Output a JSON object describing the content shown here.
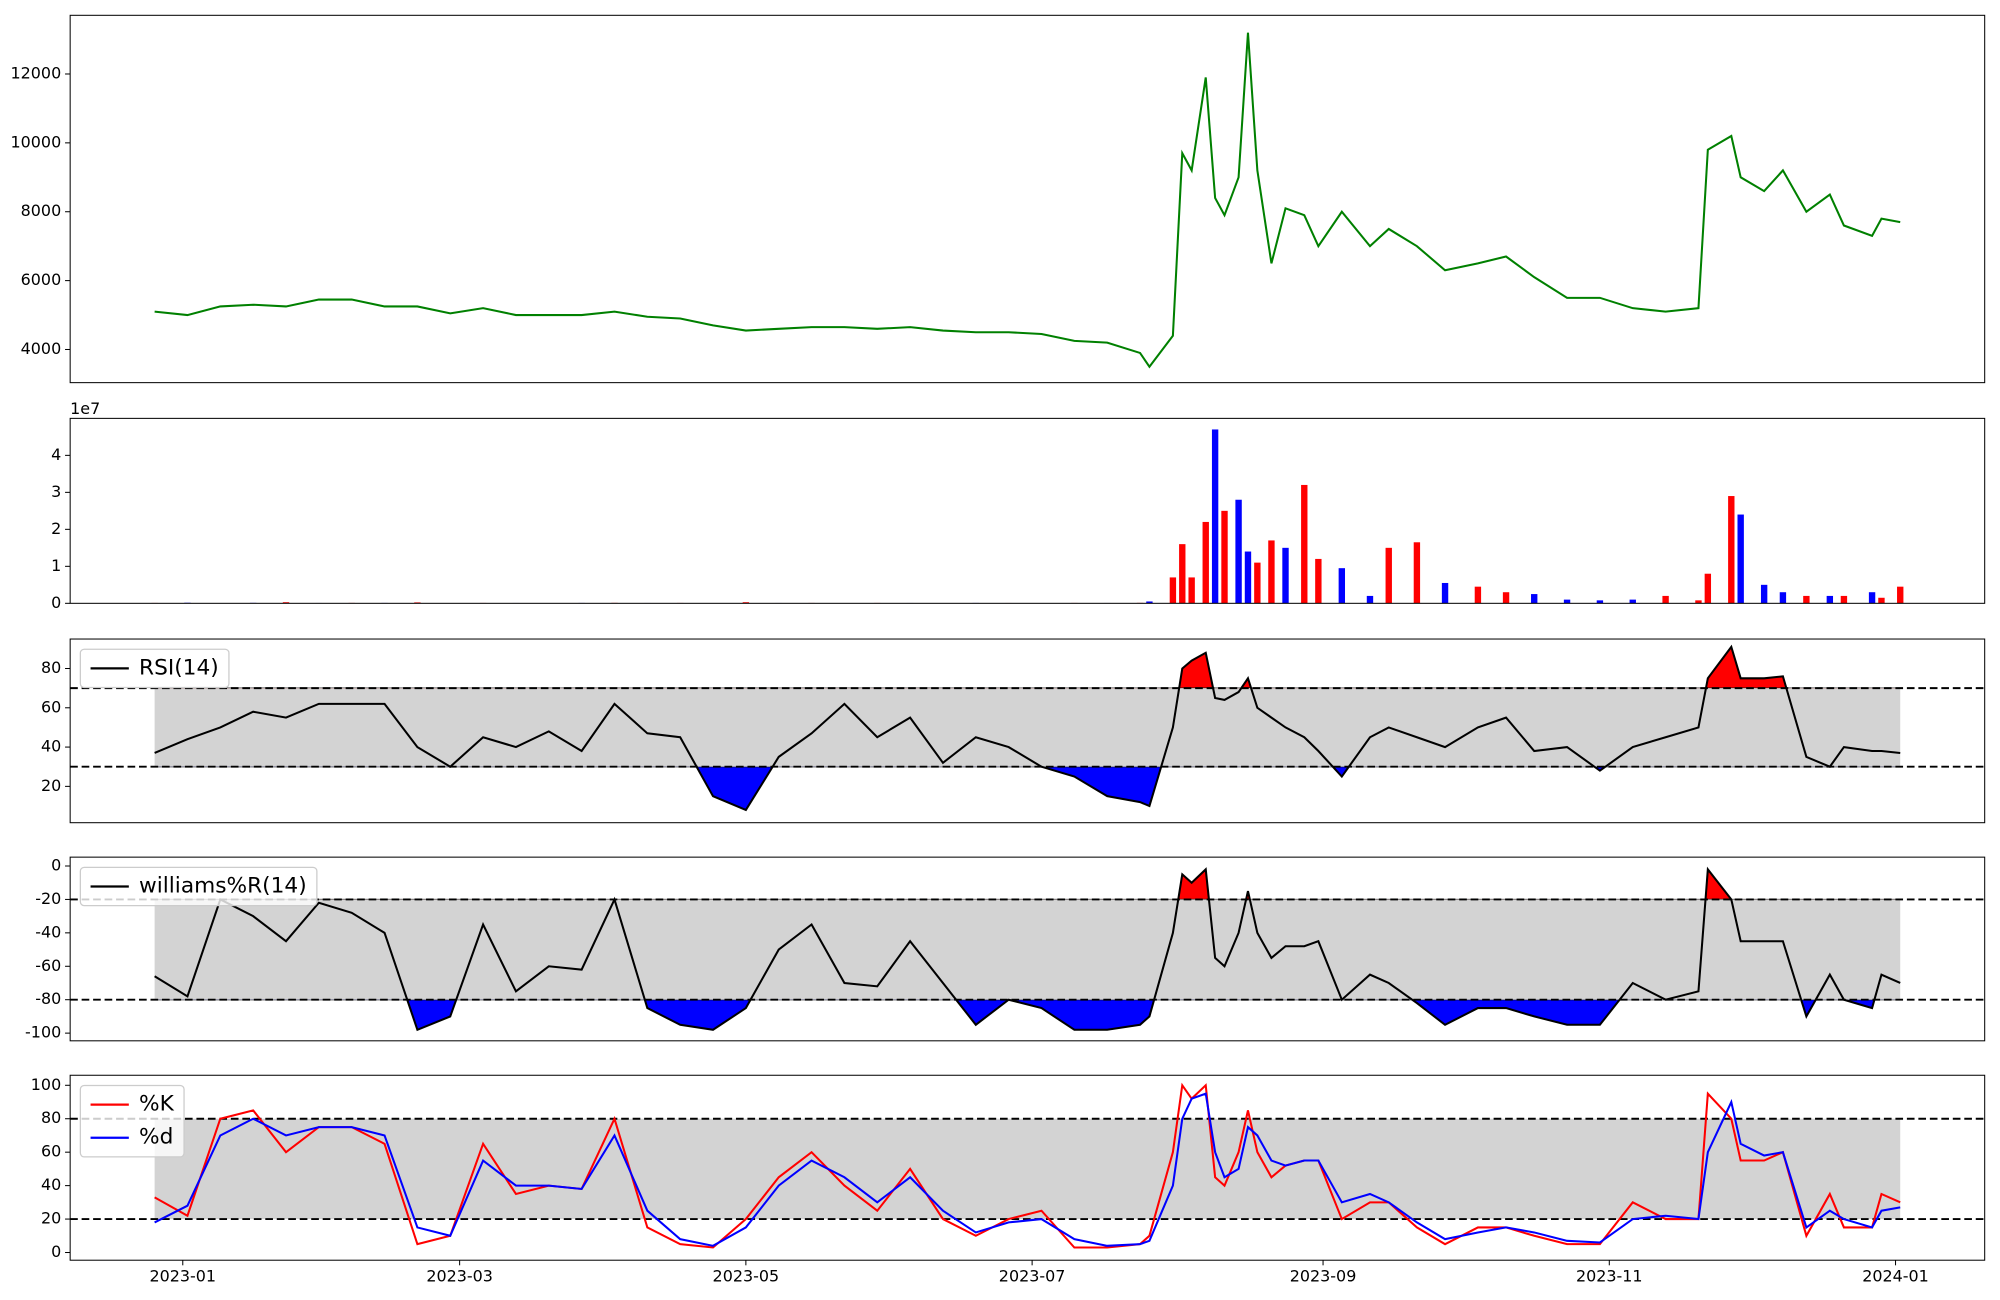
{
  "chart_data": [
    {
      "type": "line",
      "x": [
        "2022-12-26",
        "2023-01-02",
        "2023-01-09",
        "2023-01-16",
        "2023-01-23",
        "2023-01-30",
        "2023-02-06",
        "2023-02-13",
        "2023-02-20",
        "2023-02-27",
        "2023-03-06",
        "2023-03-13",
        "2023-03-20",
        "2023-03-27",
        "2023-04-03",
        "2023-04-10",
        "2023-04-17",
        "2023-04-24",
        "2023-05-01",
        "2023-05-08",
        "2023-05-15",
        "2023-05-22",
        "2023-05-29",
        "2023-06-05",
        "2023-06-12",
        "2023-06-19",
        "2023-06-26",
        "2023-07-03",
        "2023-07-10",
        "2023-07-17",
        "2023-07-24",
        "2023-07-26",
        "2023-07-31",
        "2023-08-02",
        "2023-08-04",
        "2023-08-07",
        "2023-08-09",
        "2023-08-11",
        "2023-08-14",
        "2023-08-16",
        "2023-08-18",
        "2023-08-21",
        "2023-08-24",
        "2023-08-28",
        "2023-08-31",
        "2023-09-05",
        "2023-09-11",
        "2023-09-15",
        "2023-09-21",
        "2023-09-27",
        "2023-10-04",
        "2023-10-10",
        "2023-10-16",
        "2023-10-23",
        "2023-10-30",
        "2023-11-06",
        "2023-11-13",
        "2023-11-20",
        "2023-11-22",
        "2023-11-27",
        "2023-11-29",
        "2023-12-04",
        "2023-12-08",
        "2023-12-13",
        "2023-12-18",
        "2023-12-21",
        "2023-12-27",
        "2023-12-29",
        "2024-01-02"
      ],
      "series": [
        {
          "color": "green",
          "values": [
            5100,
            5000,
            5250,
            5300,
            5250,
            5450,
            5450,
            5250,
            5250,
            5050,
            5200,
            5000,
            5000,
            5000,
            5100,
            4950,
            4900,
            4700,
            4550,
            4600,
            4650,
            4650,
            4600,
            4650,
            4550,
            4500,
            4500,
            4450,
            4250,
            4200,
            3900,
            3500,
            4400,
            9700,
            9200,
            11900,
            8400,
            7900,
            9000,
            13200,
            9200,
            6500,
            8100,
            7900,
            7000,
            8000,
            7000,
            7500,
            7000,
            6300,
            6500,
            6700,
            6100,
            5500,
            5500,
            5200,
            5100,
            5200,
            9800,
            10200,
            9000,
            8600,
            9200,
            8000,
            8500,
            7600,
            7300,
            7800,
            7700
          ]
        }
      ],
      "xlim": [
        "2022-12-08",
        "2024-01-20"
      ],
      "ylim": [
        3037,
        13704
      ],
      "yticks": [
        4000,
        6000,
        8000,
        10000,
        12000
      ]
    },
    {
      "type": "bar",
      "x": [
        "2022-12-26",
        "2023-01-02",
        "2023-01-09",
        "2023-01-16",
        "2023-01-23",
        "2023-01-30",
        "2023-02-06",
        "2023-02-13",
        "2023-02-20",
        "2023-02-27",
        "2023-03-06",
        "2023-03-13",
        "2023-03-20",
        "2023-03-27",
        "2023-04-03",
        "2023-04-10",
        "2023-04-17",
        "2023-04-24",
        "2023-05-01",
        "2023-05-08",
        "2023-05-15",
        "2023-05-22",
        "2023-05-29",
        "2023-06-05",
        "2023-06-12",
        "2023-06-19",
        "2023-06-26",
        "2023-07-03",
        "2023-07-10",
        "2023-07-17",
        "2023-07-24",
        "2023-07-26",
        "2023-07-31",
        "2023-08-02",
        "2023-08-04",
        "2023-08-07",
        "2023-08-09",
        "2023-08-11",
        "2023-08-14",
        "2023-08-16",
        "2023-08-18",
        "2023-08-21",
        "2023-08-24",
        "2023-08-28",
        "2023-08-31",
        "2023-09-05",
        "2023-09-11",
        "2023-09-15",
        "2023-09-21",
        "2023-09-27",
        "2023-10-04",
        "2023-10-10",
        "2023-10-16",
        "2023-10-23",
        "2023-10-30",
        "2023-11-06",
        "2023-11-13",
        "2023-11-20",
        "2023-11-22",
        "2023-11-27",
        "2023-11-29",
        "2023-12-04",
        "2023-12-08",
        "2023-12-13",
        "2023-12-18",
        "2023-12-21",
        "2023-12-27",
        "2023-12-29",
        "2024-01-02"
      ],
      "values": [
        100000,
        150000,
        80000,
        120000,
        300000,
        90000,
        110000,
        100000,
        250000,
        70000,
        100000,
        90000,
        80000,
        100000,
        120000,
        90000,
        100000,
        80000,
        300000,
        90000,
        100000,
        80000,
        100000,
        90000,
        80000,
        100000,
        90000,
        80000,
        100000,
        90000,
        120000,
        500000,
        7000000,
        16000000,
        7000000,
        22000000,
        47000000,
        25000000,
        28000000,
        14000000,
        11000000,
        17000000,
        15000000,
        32000000,
        12000000,
        9500000,
        2000000,
        15000000,
        16500000,
        5500000,
        4500000,
        3000000,
        2500000,
        1000000,
        800000,
        1000000,
        2000000,
        800000,
        8000000,
        29000000,
        24000000,
        5000000,
        3000000,
        2000000,
        2000000,
        2000000,
        3000000,
        1500000,
        4500000
      ],
      "colors": [
        "red",
        "blue",
        "red",
        "blue",
        "red",
        "blue",
        "red",
        "blue",
        "red",
        "blue",
        "red",
        "blue",
        "red",
        "blue",
        "red",
        "blue",
        "red",
        "blue",
        "red",
        "blue",
        "red",
        "blue",
        "red",
        "blue",
        "red",
        "blue",
        "red",
        "blue",
        "red",
        "blue",
        "red",
        "blue",
        "red",
        "red",
        "red",
        "red",
        "blue",
        "red",
        "blue",
        "blue",
        "red",
        "red",
        "blue",
        "red",
        "red",
        "blue",
        "blue",
        "red",
        "red",
        "blue",
        "red",
        "red",
        "blue",
        "blue",
        "blue",
        "blue",
        "red",
        "red",
        "red",
        "red",
        "blue",
        "blue",
        "blue",
        "red",
        "blue",
        "red",
        "blue",
        "red",
        "red"
      ],
      "xlim": [
        "2022-12-08",
        "2024-01-20"
      ],
      "ylim": [
        0,
        50000000
      ],
      "yticks": [
        0,
        {
          "value": 10000000,
          "label": "1"
        },
        {
          "value": 20000000,
          "label": "2"
        },
        {
          "value": 30000000,
          "label": "3"
        },
        {
          "value": 40000000,
          "label": "4"
        }
      ],
      "y_offset_label": "1e7"
    },
    {
      "type": "line",
      "x": [
        "2022-12-26",
        "2023-01-02",
        "2023-01-09",
        "2023-01-16",
        "2023-01-23",
        "2023-01-30",
        "2023-02-06",
        "2023-02-13",
        "2023-02-20",
        "2023-02-27",
        "2023-03-06",
        "2023-03-13",
        "2023-03-20",
        "2023-03-27",
        "2023-04-03",
        "2023-04-10",
        "2023-04-17",
        "2023-04-24",
        "2023-05-01",
        "2023-05-08",
        "2023-05-15",
        "2023-05-22",
        "2023-05-29",
        "2023-06-05",
        "2023-06-12",
        "2023-06-19",
        "2023-06-26",
        "2023-07-03",
        "2023-07-10",
        "2023-07-17",
        "2023-07-24",
        "2023-07-26",
        "2023-07-31",
        "2023-08-02",
        "2023-08-04",
        "2023-08-07",
        "2023-08-09",
        "2023-08-11",
        "2023-08-14",
        "2023-08-16",
        "2023-08-18",
        "2023-08-21",
        "2023-08-24",
        "2023-08-28",
        "2023-08-31",
        "2023-09-05",
        "2023-09-11",
        "2023-09-15",
        "2023-09-21",
        "2023-09-27",
        "2023-10-04",
        "2023-10-10",
        "2023-10-16",
        "2023-10-23",
        "2023-10-30",
        "2023-11-06",
        "2023-11-13",
        "2023-11-20",
        "2023-11-22",
        "2023-11-27",
        "2023-11-29",
        "2023-12-04",
        "2023-12-08",
        "2023-12-13",
        "2023-12-18",
        "2023-12-21",
        "2023-12-27",
        "2023-12-29",
        "2024-01-02"
      ],
      "series": [
        {
          "name": "RSI(14)",
          "color": "black",
          "values": [
            37,
            44,
            50,
            58,
            55,
            62,
            62,
            62,
            40,
            30,
            45,
            40,
            48,
            38,
            62,
            47,
            45,
            15,
            8,
            35,
            47,
            62,
            45,
            55,
            32,
            45,
            40,
            30,
            25,
            15,
            12,
            10,
            50,
            80,
            84,
            88,
            65,
            64,
            68,
            75,
            60,
            55,
            50,
            45,
            38,
            25,
            45,
            50,
            45,
            40,
            50,
            55,
            38,
            40,
            28,
            40,
            45,
            50,
            75,
            91,
            75,
            75,
            76,
            35,
            30,
            40,
            38,
            38,
            37
          ]
        }
      ],
      "band": [
        30,
        70
      ],
      "band_color": "lightgray",
      "band_line_style": "dashed",
      "fill_above_color": "red",
      "fill_below_color": "blue",
      "legend": "upper left",
      "xlim": [
        "2022-12-08",
        "2024-01-20"
      ],
      "ylim": [
        1.5,
        95
      ],
      "yticks": [
        20,
        40,
        60,
        80
      ]
    },
    {
      "type": "line",
      "x": [
        "2022-12-26",
        "2023-01-02",
        "2023-01-09",
        "2023-01-16",
        "2023-01-23",
        "2023-01-30",
        "2023-02-06",
        "2023-02-13",
        "2023-02-20",
        "2023-02-27",
        "2023-03-06",
        "2023-03-13",
        "2023-03-20",
        "2023-03-27",
        "2023-04-03",
        "2023-04-10",
        "2023-04-17",
        "2023-04-24",
        "2023-05-01",
        "2023-05-08",
        "2023-05-15",
        "2023-05-22",
        "2023-05-29",
        "2023-06-05",
        "2023-06-12",
        "2023-06-19",
        "2023-06-26",
        "2023-07-03",
        "2023-07-10",
        "2023-07-17",
        "2023-07-24",
        "2023-07-26",
        "2023-07-31",
        "2023-08-02",
        "2023-08-04",
        "2023-08-07",
        "2023-08-09",
        "2023-08-11",
        "2023-08-14",
        "2023-08-16",
        "2023-08-18",
        "2023-08-21",
        "2023-08-24",
        "2023-08-28",
        "2023-08-31",
        "2023-09-05",
        "2023-09-11",
        "2023-09-15",
        "2023-09-21",
        "2023-09-27",
        "2023-10-04",
        "2023-10-10",
        "2023-10-16",
        "2023-10-23",
        "2023-10-30",
        "2023-11-06",
        "2023-11-13",
        "2023-11-20",
        "2023-11-22",
        "2023-11-27",
        "2023-11-29",
        "2023-12-04",
        "2023-12-08",
        "2023-12-13",
        "2023-12-18",
        "2023-12-21",
        "2023-12-27",
        "2023-12-29",
        "2024-01-02"
      ],
      "series": [
        {
          "name": "williams%R(14)",
          "color": "black",
          "values": [
            -66,
            -78,
            -20,
            -30,
            -45,
            -22,
            -28,
            -40,
            -98,
            -90,
            -35,
            -75,
            -60,
            -62,
            -20,
            -85,
            -95,
            -98,
            -85,
            -50,
            -35,
            -70,
            -72,
            -45,
            -70,
            -95,
            -80,
            -85,
            -98,
            -98,
            -95,
            -90,
            -40,
            -5,
            -10,
            -2,
            -55,
            -60,
            -40,
            -15,
            -40,
            -55,
            -48,
            -48,
            -45,
            -80,
            -65,
            -70,
            -82,
            -95,
            -85,
            -85,
            -90,
            -95,
            -95,
            -70,
            -80,
            -75,
            -2,
            -20,
            -45,
            -45,
            -45,
            -90,
            -65,
            -80,
            -85,
            -65,
            -70
          ]
        }
      ],
      "band": [
        -80,
        -20
      ],
      "band_color": "lightgray",
      "band_line_style": "dashed",
      "fill_above_color": "red",
      "fill_below_color": "blue",
      "legend": "upper left",
      "xlim": [
        "2022-12-08",
        "2024-01-20"
      ],
      "ylim": [
        -104.6,
        5.3
      ],
      "yticks": [
        -100,
        -80,
        -60,
        -40,
        -20,
        0
      ]
    },
    {
      "type": "line",
      "x": [
        "2022-12-26",
        "2023-01-02",
        "2023-01-09",
        "2023-01-16",
        "2023-01-23",
        "2023-01-30",
        "2023-02-06",
        "2023-02-13",
        "2023-02-20",
        "2023-02-27",
        "2023-03-06",
        "2023-03-13",
        "2023-03-20",
        "2023-03-27",
        "2023-04-03",
        "2023-04-10",
        "2023-04-17",
        "2023-04-24",
        "2023-05-01",
        "2023-05-08",
        "2023-05-15",
        "2023-05-22",
        "2023-05-29",
        "2023-06-05",
        "2023-06-12",
        "2023-06-19",
        "2023-06-26",
        "2023-07-03",
        "2023-07-10",
        "2023-07-17",
        "2023-07-24",
        "2023-07-26",
        "2023-07-31",
        "2023-08-02",
        "2023-08-04",
        "2023-08-07",
        "2023-08-09",
        "2023-08-11",
        "2023-08-14",
        "2023-08-16",
        "2023-08-18",
        "2023-08-21",
        "2023-08-24",
        "2023-08-28",
        "2023-08-31",
        "2023-09-05",
        "2023-09-11",
        "2023-09-15",
        "2023-09-21",
        "2023-09-27",
        "2023-10-04",
        "2023-10-10",
        "2023-10-16",
        "2023-10-23",
        "2023-10-30",
        "2023-11-06",
        "2023-11-13",
        "2023-11-20",
        "2023-11-22",
        "2023-11-27",
        "2023-11-29",
        "2023-12-04",
        "2023-12-08",
        "2023-12-13",
        "2023-12-18",
        "2023-12-21",
        "2023-12-27",
        "2023-12-29",
        "2024-01-02"
      ],
      "series": [
        {
          "name": "%K",
          "color": "red",
          "values": [
            33,
            22,
            80,
            85,
            60,
            75,
            75,
            65,
            5,
            10,
            65,
            35,
            40,
            38,
            80,
            15,
            5,
            3,
            20,
            45,
            60,
            40,
            25,
            50,
            20,
            10,
            20,
            25,
            3,
            3,
            5,
            10,
            60,
            100,
            92,
            100,
            45,
            40,
            60,
            85,
            60,
            45,
            52,
            55,
            55,
            20,
            30,
            30,
            15,
            5,
            15,
            15,
            10,
            5,
            5,
            30,
            20,
            20,
            95,
            80,
            55,
            55,
            60,
            10,
            35,
            15,
            15,
            35,
            30
          ]
        },
        {
          "name": "%d",
          "color": "blue",
          "values": [
            18,
            28,
            70,
            80,
            70,
            75,
            75,
            70,
            15,
            10,
            55,
            40,
            40,
            38,
            70,
            25,
            8,
            4,
            15,
            40,
            55,
            45,
            30,
            45,
            25,
            12,
            18,
            20,
            8,
            4,
            5,
            7,
            40,
            80,
            92,
            95,
            60,
            45,
            50,
            75,
            70,
            55,
            52,
            55,
            55,
            30,
            35,
            30,
            18,
            8,
            12,
            15,
            12,
            7,
            6,
            20,
            22,
            20,
            60,
            90,
            65,
            58,
            60,
            15,
            25,
            20,
            15,
            25,
            27
          ]
        }
      ],
      "band": [
        20,
        80
      ],
      "band_color": "lightgray",
      "band_line_style": "dashed",
      "legend": "upper left",
      "xlim": [
        "2022-12-08",
        "2024-01-20"
      ],
      "ylim": [
        -4.6,
        106
      ],
      "yticks": [
        0,
        20,
        40,
        60,
        80,
        100
      ],
      "xticks": [
        {
          "value": "2023-01-01",
          "label": "2023-01"
        },
        {
          "value": "2023-03-01",
          "label": "2023-03"
        },
        {
          "value": "2023-05-01",
          "label": "2023-05"
        },
        {
          "value": "2023-07-01",
          "label": "2023-07"
        },
        {
          "value": "2023-09-01",
          "label": "2023-09"
        },
        {
          "value": "2023-11-01",
          "label": "2023-11"
        },
        {
          "value": "2024-01-01",
          "label": "2024-01"
        }
      ]
    }
  ]
}
